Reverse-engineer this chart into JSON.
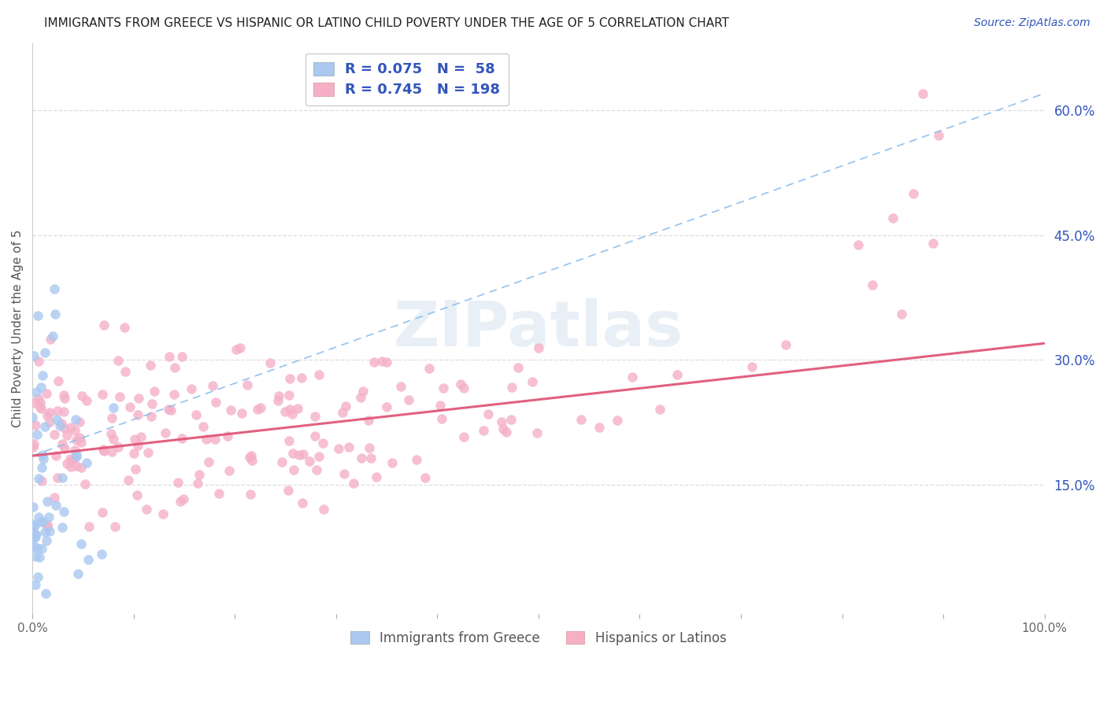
{
  "title": "IMMIGRANTS FROM GREECE VS HISPANIC OR LATINO CHILD POVERTY UNDER THE AGE OF 5 CORRELATION CHART",
  "source": "Source: ZipAtlas.com",
  "ylabel": "Child Poverty Under the Age of 5",
  "watermark": "ZIPatlas",
  "series1_label": "Immigrants from Greece",
  "series1_R": 0.075,
  "series1_N": 58,
  "series1_color": "#aac8f0",
  "series1_edge_color": "#6699dd",
  "series2_label": "Hispanics or Latinos",
  "series2_R": 0.745,
  "series2_N": 198,
  "series2_color": "#f5b0c8",
  "series2_edge_color": "#e06080",
  "series1_line_color": "#88bbee",
  "series2_line_color": "#e05878",
  "title_color": "#222222",
  "source_color": "#3355bb",
  "legend_color": "#3355bb",
  "right_ytick_color": "#3355bb",
  "background_color": "#ffffff",
  "grid_color": "#dddddd",
  "xlim": [
    0.0,
    1.0
  ],
  "ylim": [
    -0.005,
    0.68
  ],
  "right_yticks": [
    0.15,
    0.3,
    0.45,
    0.6
  ],
  "right_yticklabels": [
    "15.0%",
    "30.0%",
    "45.0%",
    "60.0%"
  ],
  "xticks": [
    0.0,
    0.1,
    0.2,
    0.3,
    0.4,
    0.5,
    0.6,
    0.7,
    0.8,
    0.9,
    1.0
  ],
  "xticklabels": [
    "0.0%",
    "",
    "",
    "",
    "",
    "",
    "",
    "",
    "",
    "",
    "100.0%"
  ],
  "trend1_x0": 0.0,
  "trend1_y0": 0.185,
  "trend1_x1": 1.0,
  "trend1_y1": 0.62,
  "trend2_x0": 0.0,
  "trend2_y0": 0.185,
  "trend2_x1": 1.0,
  "trend2_y1": 0.32
}
